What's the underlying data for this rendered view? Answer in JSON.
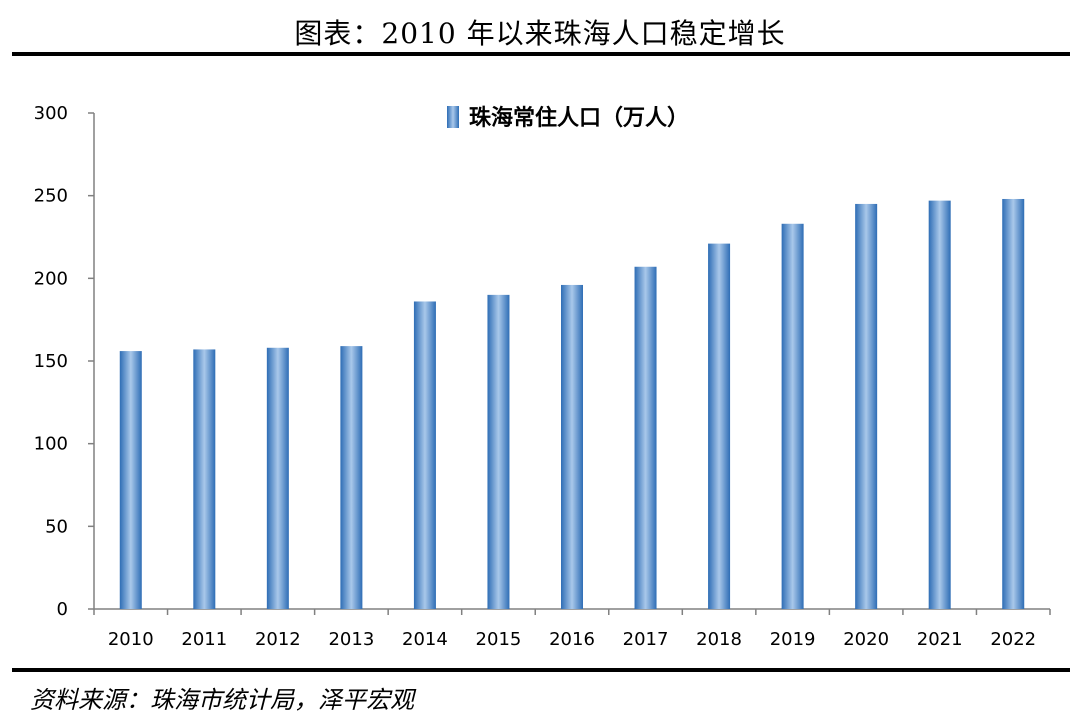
{
  "header": {
    "title": "图表：2010 年以来珠海人口稳定增长"
  },
  "footer": {
    "source": "资料来源：珠海市统计局，泽平宏观"
  },
  "colors": {
    "bar_dark": "#2e6db5",
    "bar_light": "#a9c8ea",
    "axis": "#808080"
  },
  "chart_data": {
    "type": "bar",
    "title": "",
    "xlabel": "",
    "ylabel": "",
    "categories": [
      "2010",
      "2011",
      "2012",
      "2013",
      "2014",
      "2015",
      "2016",
      "2017",
      "2018",
      "2019",
      "2020",
      "2021",
      "2022"
    ],
    "series": [
      {
        "name": "珠海常住人口（万人）",
        "values": [
          156,
          157,
          158,
          159,
          186,
          190,
          196,
          207,
          221,
          233,
          245,
          247,
          248
        ]
      }
    ],
    "ylim": [
      0,
      300
    ],
    "yticks": [
      0,
      50,
      100,
      150,
      200,
      250,
      300
    ],
    "grid": false,
    "legend_position": "top-center"
  }
}
